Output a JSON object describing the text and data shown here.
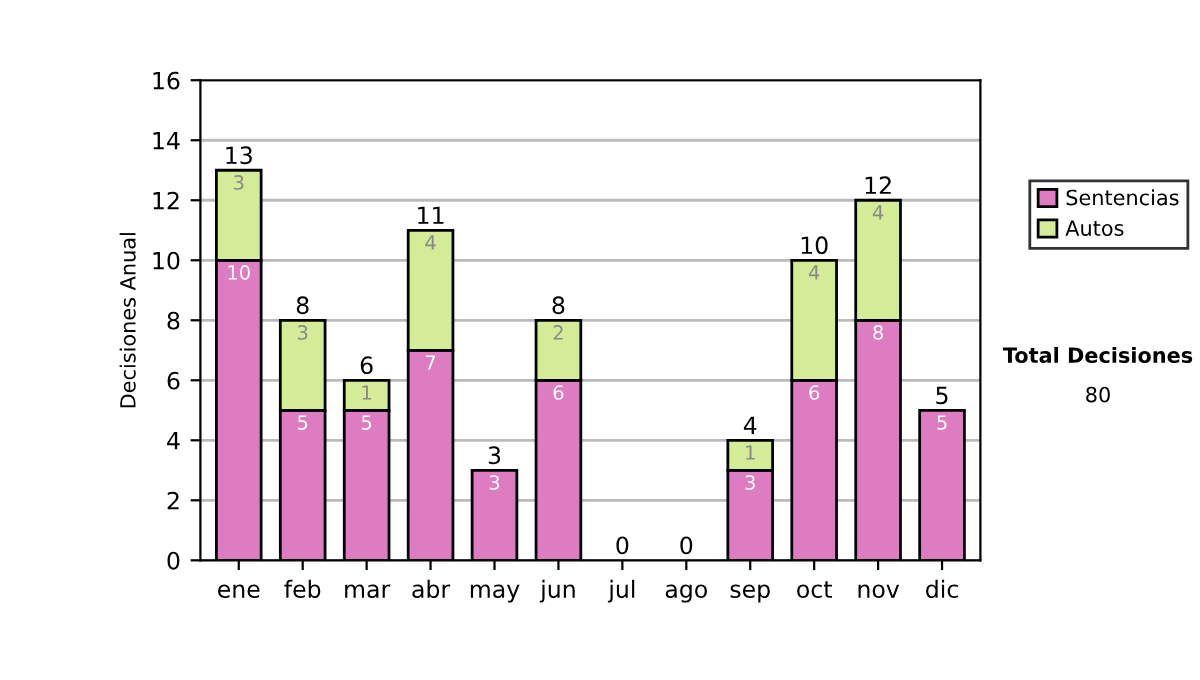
{
  "chart_data": {
    "type": "bar",
    "stacked": true,
    "ylabel": "Decisiones Anual",
    "categories": [
      "ene",
      "feb",
      "mar",
      "abr",
      "may",
      "jun",
      "jul",
      "ago",
      "sep",
      "oct",
      "nov",
      "dic"
    ],
    "series": [
      {
        "name": "Sentencias",
        "color": "#dd7cc0",
        "values": [
          10,
          5,
          5,
          7,
          3,
          6,
          0,
          0,
          3,
          6,
          8,
          5
        ],
        "value_labels": [
          "10",
          "5",
          "5",
          "7",
          "3",
          "6",
          null,
          null,
          "3",
          "6",
          "8",
          "5"
        ]
      },
      {
        "name": "Autos",
        "color": "#d4ec98",
        "values": [
          3,
          3,
          1,
          4,
          0,
          2,
          0,
          0,
          1,
          4,
          4,
          0
        ],
        "value_labels": [
          "3",
          "3",
          "1",
          "4",
          null,
          "2",
          null,
          null,
          "1",
          "4",
          "4",
          null
        ]
      }
    ],
    "totals": [
      "13",
      "8",
      "6",
      "11",
      "3",
      "8",
      "0",
      "0",
      "4",
      "10",
      "12",
      "5"
    ],
    "ylim": [
      0,
      16
    ],
    "yticks": [
      0,
      2,
      4,
      6,
      8,
      10,
      12,
      14,
      16
    ],
    "grid": "y",
    "legend": "right",
    "annotations": [
      "Total Decisiones",
      "80"
    ]
  }
}
